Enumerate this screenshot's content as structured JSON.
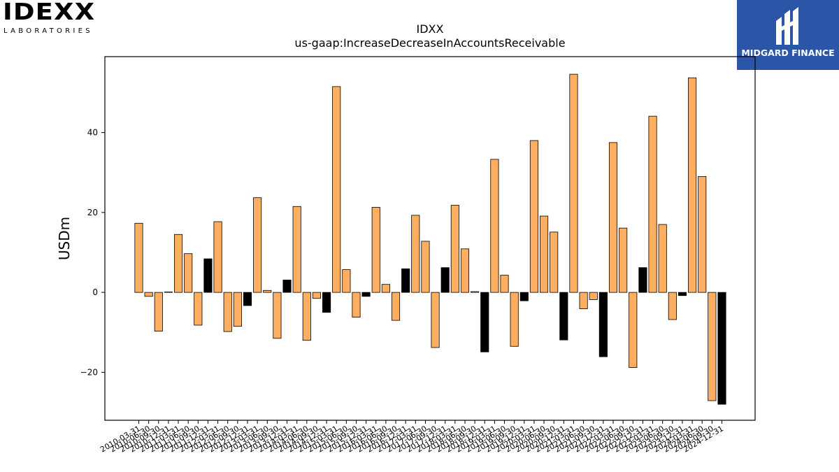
{
  "logos": {
    "left": {
      "brand": "IDEXX",
      "sub": "LABORATORIES"
    },
    "right": {
      "name": "MIDGARD FINANCE"
    }
  },
  "colors": {
    "primary": "#fdae61",
    "highlight": "#000000",
    "edge": "#000000"
  },
  "chart_data": {
    "type": "bar",
    "title": "IDXX",
    "subtitle": "us-gaap:IncreaseDecreaseInAccountsReceivable",
    "xlabel": "",
    "ylabel": "USDm",
    "ylim": [
      -32,
      59
    ],
    "yticks": [
      -20,
      0,
      20,
      40
    ],
    "grid": false,
    "categories": [
      "2010-03-31",
      "2010-06-30",
      "2010-09-30",
      "2010-12-31",
      "2011-03-31",
      "2011-06-30",
      "2011-09-30",
      "2011-12-31",
      "2012-03-31",
      "2012-06-30",
      "2012-09-30",
      "2012-12-31",
      "2013-03-31",
      "2013-06-30",
      "2013-09-30",
      "2013-12-31",
      "2014-03-31",
      "2014-06-30",
      "2014-09-30",
      "2014-12-31",
      "2015-03-31",
      "2015-06-30",
      "2015-09-30",
      "2015-12-31",
      "2016-03-31",
      "2016-06-30",
      "2016-09-30",
      "2016-12-31",
      "2017-03-31",
      "2017-06-30",
      "2017-09-30",
      "2017-12-31",
      "2018-03-31",
      "2018-06-30",
      "2018-09-30",
      "2018-12-31",
      "2019-03-31",
      "2019-06-30",
      "2019-09-30",
      "2019-12-31",
      "2020-03-31",
      "2020-06-30",
      "2020-09-30",
      "2020-12-31",
      "2021-03-31",
      "2021-06-30",
      "2021-09-30",
      "2021-12-31",
      "2022-03-31",
      "2022-06-30",
      "2022-09-30",
      "2022-12-31",
      "2023-03-31",
      "2023-06-30",
      "2023-09-30",
      "2023-12-31",
      "2024-03-31",
      "2024-06-30",
      "2024-09-30",
      "2024-12-31"
    ],
    "values": [
      17.3,
      -1.0,
      -9.7,
      0.1,
      14.5,
      9.7,
      -8.2,
      8.4,
      17.7,
      -9.8,
      -8.5,
      -3.3,
      23.7,
      0.5,
      -11.5,
      3.1,
      21.5,
      -12.0,
      -1.5,
      -5.0,
      51.5,
      5.7,
      -6.2,
      -1.0,
      21.3,
      2.0,
      -7.0,
      5.9,
      19.3,
      12.8,
      -13.8,
      6.2,
      21.8,
      10.9,
      0.2,
      -14.9,
      33.3,
      4.3,
      -13.5,
      -2.1,
      38.0,
      19.1,
      15.1,
      -11.9,
      54.6,
      -4.1,
      -1.8,
      -16.1,
      37.5,
      16.1,
      -18.8,
      6.2,
      44.1,
      17.0,
      -6.8,
      -0.8,
      53.7,
      29.0,
      -27.1,
      -28.0
    ],
    "highlight": [
      false,
      false,
      false,
      false,
      false,
      false,
      false,
      true,
      false,
      false,
      false,
      true,
      false,
      false,
      false,
      true,
      false,
      false,
      false,
      true,
      false,
      false,
      false,
      true,
      false,
      false,
      false,
      true,
      false,
      false,
      false,
      true,
      false,
      false,
      false,
      true,
      false,
      false,
      false,
      true,
      false,
      false,
      false,
      true,
      false,
      false,
      false,
      true,
      false,
      false,
      false,
      true,
      false,
      false,
      false,
      true,
      false,
      false,
      false,
      true
    ]
  }
}
